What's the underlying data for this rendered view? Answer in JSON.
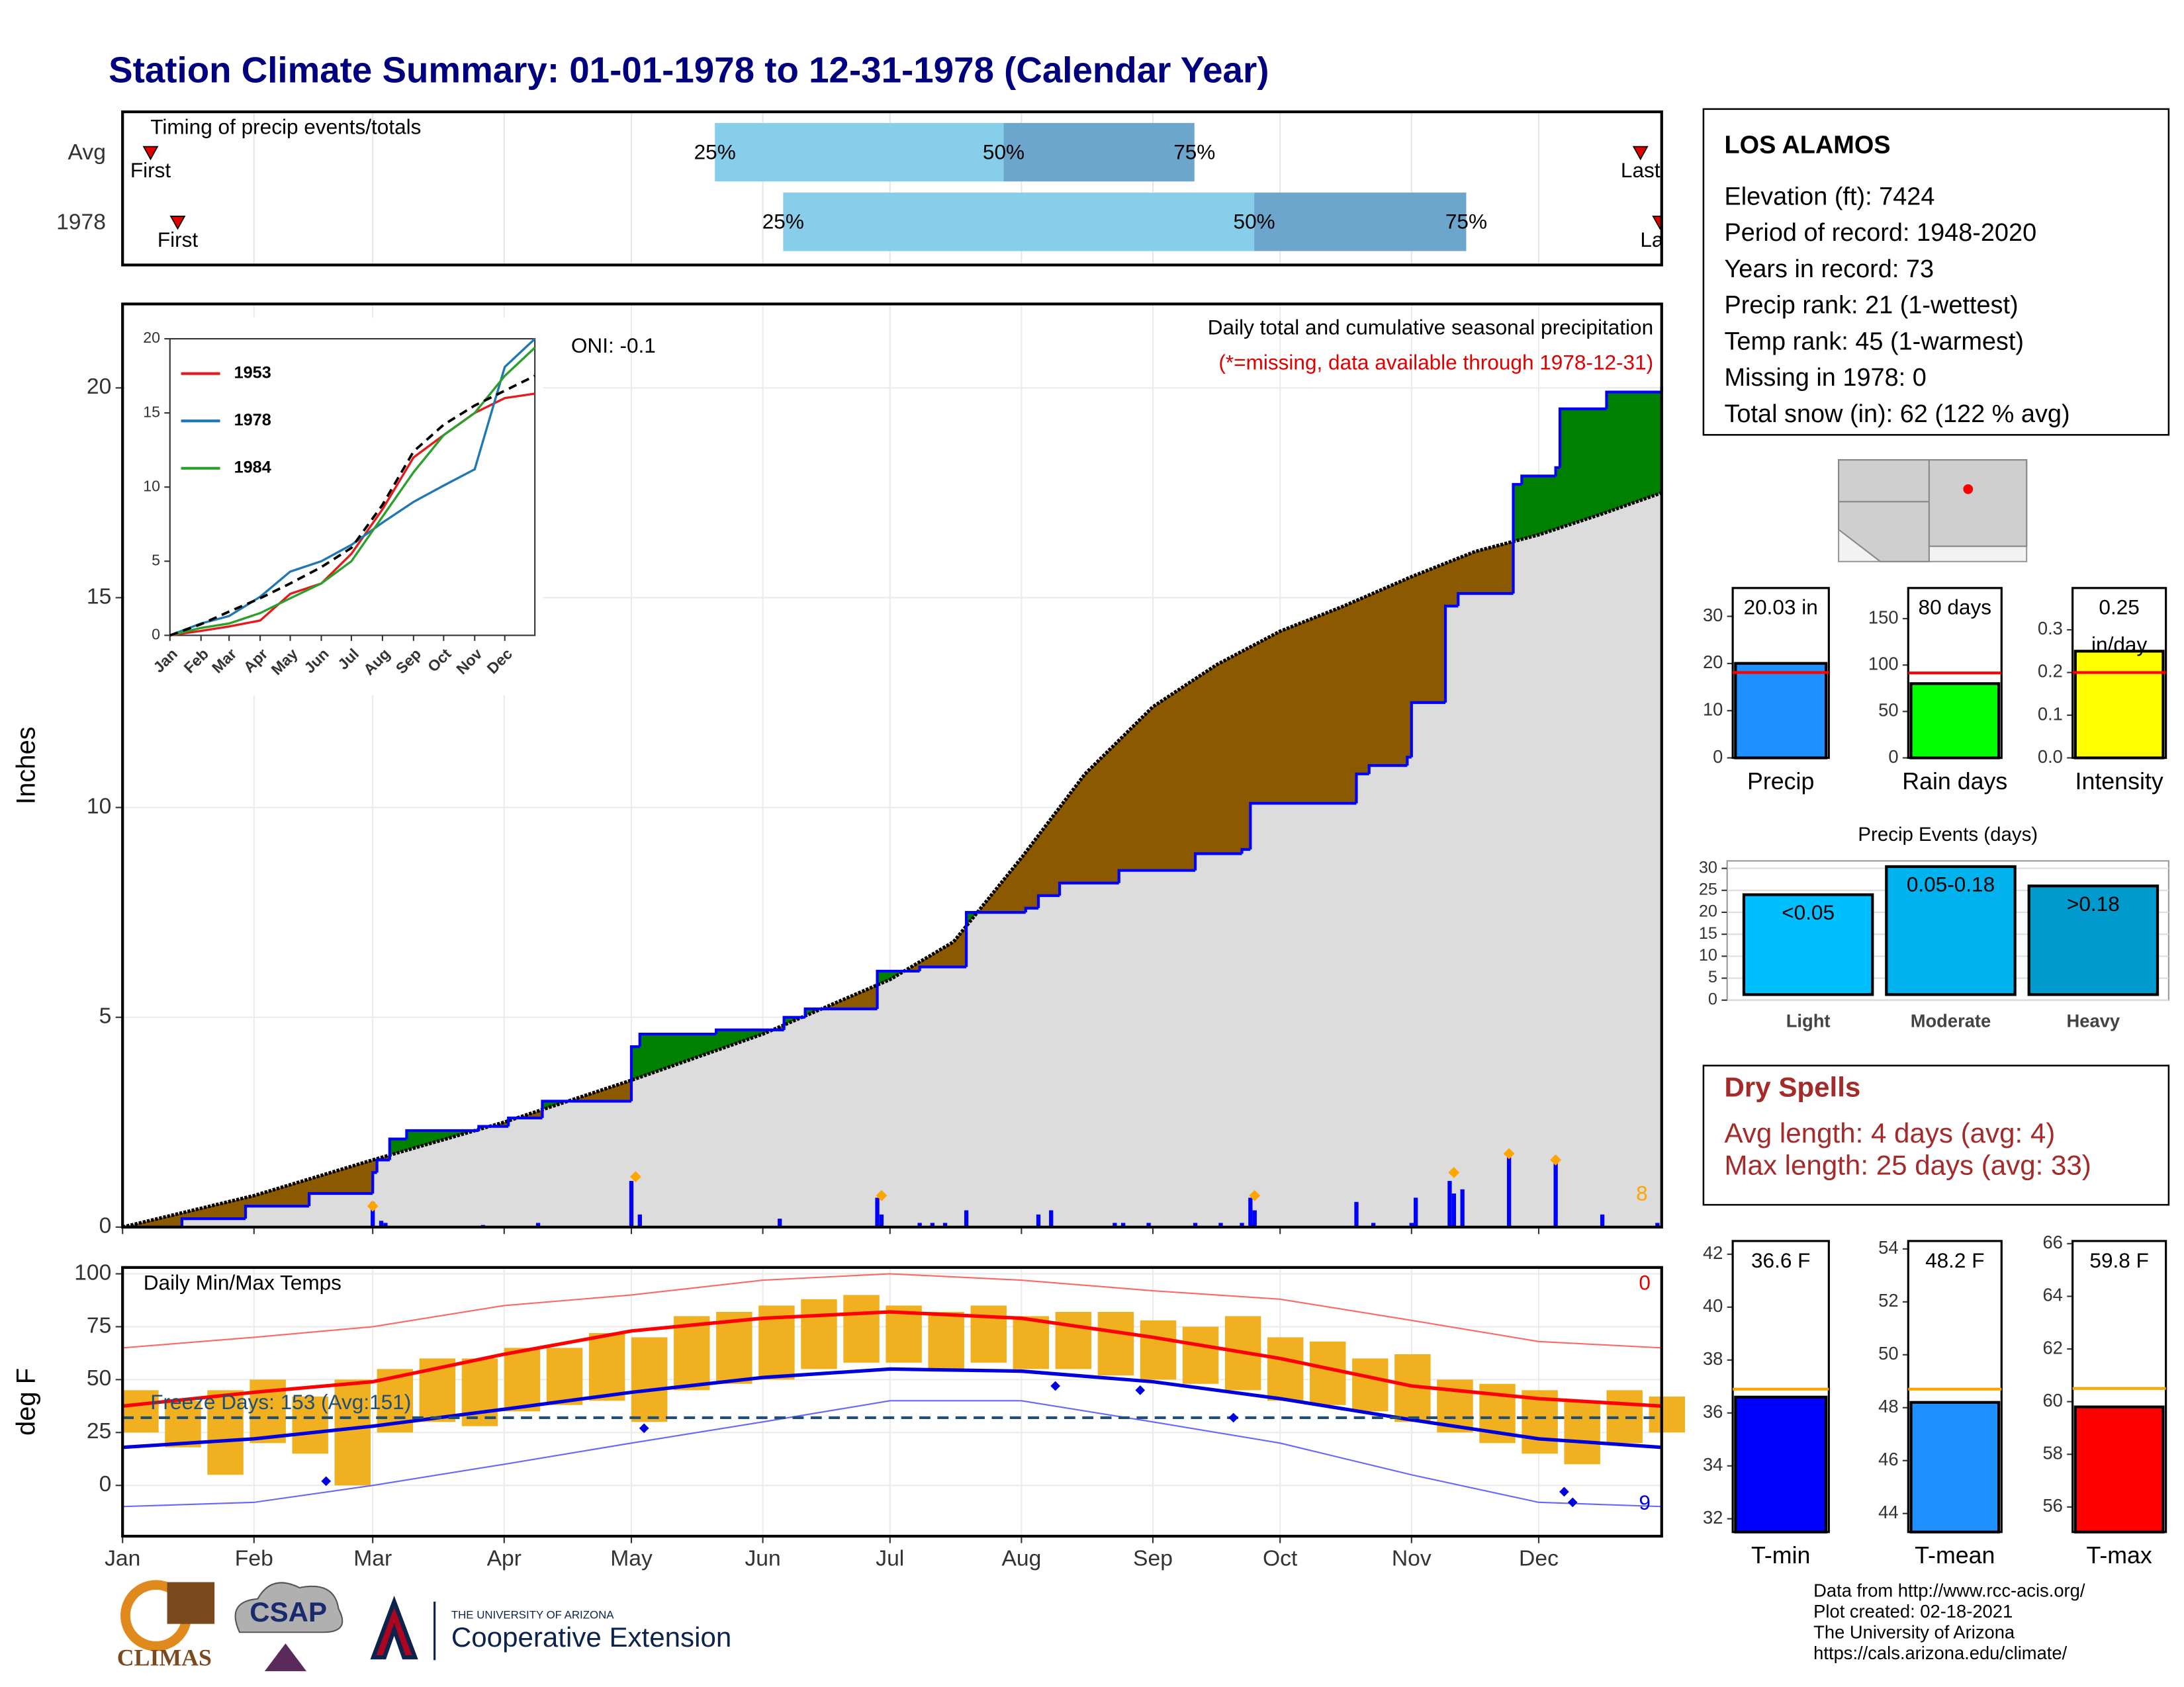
{
  "title": "Station Climate Summary: 01-01-1978 to 12-31-1978 (Calendar Year)",
  "station": {
    "name": "LOS ALAMOS",
    "lines": [
      "Elevation (ft): 7424",
      "Period of record: 1948-2020",
      "Years in record: 73",
      "Precip rank: 21 (1-wettest)",
      "Temp rank: 45 (1-warmest)",
      "Missing in 1978: 0",
      "Total snow (in): 62 (122 % avg)"
    ]
  },
  "dry_spells": {
    "title": "Dry Spells",
    "lines": [
      "Avg length: 4 days (avg: 4)",
      "Max length: 25 days (avg: 33)"
    ]
  },
  "credits": [
    "Data from http://www.rcc-acis.org/",
    "Plot created: 02-18-2021",
    "The University of Arizona",
    "https://cals.arizona.edu/climate/"
  ],
  "logos": {
    "climas": "CLIMAS",
    "csap": "CSAP",
    "university": "THE UNIVERSITY OF ARIZONA",
    "extension": "Cooperative Extension"
  },
  "chart_data": [
    {
      "type": "timing",
      "title": "Timing of precip events/totals",
      "categories": [
        "Avg",
        "1978"
      ],
      "first": [
        7.6,
        14
      ],
      "q25": [
        140.7,
        156.8
      ],
      "q50": [
        208.8,
        267.9
      ],
      "q75": [
        253.8,
        317.9
      ],
      "last": [
        359,
        363.6
      ],
      "q_labels": [
        "25%",
        "50%",
        "75%"
      ],
      "first_label": "First",
      "last_label": "Last",
      "colors": [
        "#87ceeb",
        "#6ca6cd"
      ],
      "marker_color": "#e00000",
      "xlim": [
        1,
        364
      ],
      "xticks": [
        1,
        32,
        60,
        91,
        121,
        152,
        182,
        213,
        244,
        274,
        305,
        335
      ],
      "grid": true
    },
    {
      "type": "cumulative",
      "title": "Daily total and cumulative seasonal precipitation",
      "note": "(*=missing, data available through 1978-12-31)",
      "annotation": "ONI: -0.1",
      "corner_label": "8",
      "y_label": "Inches",
      "xlim": [
        1,
        364
      ],
      "xticks": [
        1,
        32,
        60,
        91,
        121,
        152,
        182,
        213,
        244,
        274,
        305,
        335
      ],
      "ylim": [
        0,
        22
      ],
      "yticks": [
        0,
        5,
        10,
        15,
        20
      ],
      "grid": true,
      "above_color": "#008000",
      "below_color": "#8b5a00",
      "base_color": "#dcdcdc",
      "avg_cumulative": {
        "color": "#000000",
        "x": [
          1,
          32,
          60,
          91,
          121,
          152,
          182,
          197,
          213,
          228,
          244,
          259,
          274,
          289,
          305,
          320,
          335,
          350,
          364
        ],
        "values": [
          0,
          0.75,
          1.6,
          2.5,
          3.5,
          4.6,
          5.9,
          6.8,
          8.8,
          10.8,
          12.4,
          13.4,
          14.2,
          14.8,
          15.5,
          16.1,
          16.5,
          17.0,
          17.5
        ]
      },
      "cumulative": {
        "color": "#0000ff",
        "x": [
          1,
          15,
          30,
          45,
          60,
          61,
          64,
          68,
          85,
          92,
          100,
          121,
          123,
          141,
          157,
          162,
          179,
          189,
          200,
          214,
          217,
          222,
          236,
          254,
          265,
          267,
          292,
          295,
          304,
          305,
          313,
          316,
          329,
          331,
          339,
          340,
          351,
          364
        ],
        "values": [
          0,
          0.2,
          0.5,
          0.8,
          1.3,
          1.6,
          2.1,
          2.3,
          2.4,
          2.6,
          3.0,
          4.3,
          4.6,
          4.7,
          5.0,
          5.2,
          6.1,
          6.2,
          7.5,
          7.6,
          7.9,
          8.2,
          8.5,
          8.9,
          9.0,
          10.1,
          10.8,
          11.0,
          11.2,
          12.5,
          14.8,
          15.1,
          17.7,
          17.9,
          18.1,
          19.5,
          19.9,
          20.03
        ]
      },
      "daily": {
        "color": "#0000ff",
        "x": [
          60,
          62,
          63,
          86,
          99,
          121,
          123,
          156,
          179,
          180,
          189,
          192,
          195,
          200,
          217,
          220,
          235,
          237,
          243,
          254,
          260,
          265,
          267,
          268,
          292,
          296,
          305,
          306,
          314,
          315,
          317,
          328,
          339,
          350,
          363
        ],
        "values": [
          0.6,
          0.15,
          0.1,
          0.05,
          0.1,
          1.1,
          0.3,
          0.2,
          0.7,
          0.3,
          0.1,
          0.1,
          0.1,
          0.4,
          0.3,
          0.4,
          0.1,
          0.1,
          0.1,
          0.1,
          0.1,
          0.1,
          0.7,
          0.4,
          0.6,
          0.1,
          0.1,
          0.7,
          1.1,
          0.8,
          0.9,
          1.7,
          1.6,
          0.3,
          0.1
        ]
      },
      "markers": {
        "color": "#ffa500",
        "x": [
          60,
          122,
          180,
          268,
          315,
          328,
          339
        ],
        "values": [
          0.5,
          1.2,
          0.75,
          0.75,
          1.3,
          1.75,
          1.6
        ]
      }
    },
    {
      "type": "line",
      "xlim": [
        1,
        365
      ],
      "xticks": [
        {
          "value": 1,
          "label": "Jan"
        },
        {
          "value": 32,
          "label": "Feb"
        },
        {
          "value": 60,
          "label": "Mar"
        },
        {
          "value": 91,
          "label": "Apr"
        },
        {
          "value": 121,
          "label": "May"
        },
        {
          "value": 152,
          "label": "Jun"
        },
        {
          "value": 182,
          "label": "Jul"
        },
        {
          "value": 213,
          "label": "Aug"
        },
        {
          "value": 244,
          "label": "Sep"
        },
        {
          "value": 274,
          "label": "Oct"
        },
        {
          "value": 305,
          "label": "Nov"
        },
        {
          "value": 335,
          "label": "Dec"
        }
      ],
      "ylim": [
        0,
        20
      ],
      "yticks": [
        0,
        5,
        10,
        15,
        20
      ],
      "x": [
        1,
        32,
        60,
        91,
        121,
        152,
        182,
        213,
        244,
        274,
        305,
        335,
        365
      ],
      "series": [
        {
          "name": "1953",
          "color": "#e41a1c",
          "values": [
            0,
            0.3,
            0.6,
            1.0,
            2.8,
            3.5,
            5.5,
            8.5,
            12.0,
            13.5,
            15.0,
            16.0,
            16.3
          ]
        },
        {
          "name": "1978",
          "color": "#1f77b4",
          "values": [
            0,
            0.8,
            1.3,
            2.6,
            4.3,
            5.0,
            6.1,
            7.6,
            9.0,
            10.1,
            11.2,
            18.1,
            20.0
          ]
        },
        {
          "name": "1984",
          "color": "#2ca02c",
          "values": [
            0,
            0.5,
            0.8,
            1.5,
            2.5,
            3.5,
            5.0,
            8.0,
            11.0,
            13.5,
            15.0,
            17.5,
            19.4
          ]
        }
      ],
      "avg": {
        "color": "#000000",
        "values": [
          0,
          0.75,
          1.6,
          2.5,
          3.5,
          4.6,
          5.9,
          8.8,
          12.4,
          14.2,
          15.5,
          16.5,
          17.5
        ]
      }
    },
    {
      "type": "temperature",
      "title": "Daily Min/Max Temps",
      "annotation": "Freeze Days: 153 (Avg:151)",
      "top_label": "0",
      "bottom_label": "9",
      "y_label": "deg F",
      "xlim": [
        1,
        364
      ],
      "xticks": [
        {
          "value": 1,
          "label": "Jan"
        },
        {
          "value": 32,
          "label": "Feb"
        },
        {
          "value": 60,
          "label": "Mar"
        },
        {
          "value": 91,
          "label": "Apr"
        },
        {
          "value": 121,
          "label": "May"
        },
        {
          "value": 152,
          "label": "Jun"
        },
        {
          "value": 182,
          "label": "Jul"
        },
        {
          "value": 213,
          "label": "Aug"
        },
        {
          "value": 244,
          "label": "Sep"
        },
        {
          "value": 274,
          "label": "Oct"
        },
        {
          "value": 305,
          "label": "Nov"
        },
        {
          "value": 335,
          "label": "Dec"
        }
      ],
      "ylim": [
        -24,
        103
      ],
      "yticks": [
        0,
        25,
        50,
        75,
        100
      ],
      "grid": true,
      "freeze": 32,
      "daily": {
        "color": "#f0b020",
        "x": [
          1,
          11,
          21,
          31,
          41,
          51,
          61,
          71,
          81,
          91,
          101,
          111,
          121,
          131,
          141,
          151,
          161,
          171,
          181,
          191,
          201,
          211,
          221,
          231,
          241,
          251,
          261,
          271,
          281,
          291,
          301,
          311,
          321,
          331,
          341,
          351,
          361
        ],
        "max": [
          45,
          40,
          45,
          50,
          42,
          50,
          55,
          60,
          60,
          65,
          65,
          72,
          70,
          80,
          82,
          85,
          88,
          90,
          85,
          82,
          85,
          80,
          82,
          82,
          78,
          75,
          80,
          70,
          68,
          60,
          62,
          50,
          48,
          45,
          40,
          45,
          42
        ],
        "min": [
          25,
          18,
          5,
          20,
          15,
          0,
          25,
          30,
          28,
          35,
          38,
          40,
          30,
          45,
          48,
          50,
          55,
          58,
          58,
          55,
          58,
          55,
          55,
          52,
          50,
          48,
          45,
          40,
          38,
          35,
          30,
          25,
          20,
          15,
          10,
          20,
          25
        ]
      },
      "monthly_x": [
        1,
        32,
        60,
        91,
        121,
        152,
        182,
        213,
        244,
        274,
        305,
        335,
        364
      ],
      "avg_max": {
        "color": "#ff0000",
        "values": [
          37.5,
          44,
          49,
          62,
          73,
          79,
          82,
          79,
          70,
          60,
          47,
          41,
          37.5
        ]
      },
      "avg_min": {
        "color": "#0000dd",
        "values": [
          18,
          22,
          28,
          36,
          44,
          51,
          55,
          54,
          49,
          41,
          31,
          22,
          18
        ]
      },
      "record_high": {
        "color": "#ff6666",
        "values": [
          65,
          70,
          75,
          85,
          90,
          97,
          100,
          97,
          92,
          88,
          78,
          68,
          65
        ]
      },
      "record_low": {
        "color": "#6666ff",
        "values": [
          -10,
          -8,
          0,
          10,
          20,
          30,
          40,
          40,
          30,
          20,
          5,
          -8,
          -10
        ]
      },
      "markers": {
        "color": "#0000dd",
        "x": [
          49,
          124,
          221,
          241,
          263,
          341,
          343
        ],
        "values": [
          2,
          27,
          47,
          45,
          32,
          -3,
          -8
        ]
      }
    },
    {
      "type": "summary_bar",
      "category": "Precip",
      "value": 20.03,
      "value_label": "20.03 in",
      "avg": 18.1,
      "color": "#1e90ff",
      "avg_color": "#ff0000",
      "ylim": [
        0,
        36
      ],
      "yticks": [
        0,
        10,
        20,
        30
      ]
    },
    {
      "type": "summary_bar",
      "category": "Rain days",
      "value": 80,
      "value_label": "80 days",
      "avg": 91.5,
      "color": "#00ff00",
      "avg_color": "#ff0000",
      "ylim": [
        0,
        183
      ],
      "yticks": [
        0,
        50,
        100,
        150
      ]
    },
    {
      "type": "summary_bar",
      "category": "Intensity",
      "value": 0.25,
      "value_label": "0.25 in/day",
      "avg": 0.2,
      "color": "#ffff00",
      "avg_color": "#ff0000",
      "ylim": [
        0,
        0.398
      ],
      "yticks": [
        {
          "value": 0,
          "label": "0.0"
        },
        0.1,
        0.2,
        0.3
      ]
    },
    {
      "type": "bar",
      "title": "Precip Events (days)",
      "categories": [
        "Light",
        "Moderate",
        "Heavy"
      ],
      "values": [
        24,
        30.4,
        26
      ],
      "bin_labels": [
        "<0.05",
        "0.05-0.18",
        ">0.18"
      ],
      "colors": [
        "#00bfff",
        "#00b2ee",
        "#009acd"
      ],
      "ylim": [
        0,
        31.7
      ],
      "yticks": [
        0,
        5,
        10,
        15,
        20,
        25,
        30
      ],
      "grid": true
    },
    {
      "type": "summary_bar",
      "category": "T-min",
      "value": 36.6,
      "value_label": "36.6 F",
      "avg": 36.9,
      "color": "#0000ff",
      "avg_color": "#ffa500",
      "ylim": [
        31.5,
        42.5
      ],
      "yticks": [
        32,
        34,
        36,
        38,
        40,
        42
      ]
    },
    {
      "type": "summary_bar",
      "category": "T-mean",
      "value": 48.2,
      "value_label": "48.2 F",
      "avg": 48.7,
      "color": "#1e90ff",
      "avg_color": "#ffa500",
      "ylim": [
        43.3,
        54.3
      ],
      "yticks": [
        44,
        46,
        48,
        50,
        52,
        54
      ]
    },
    {
      "type": "summary_bar",
      "category": "T-max",
      "value": 59.8,
      "value_label": "59.8 F",
      "avg": 60.5,
      "color": "#ff0000",
      "avg_color": "#ffa500",
      "ylim": [
        55.05,
        66.1
      ],
      "yticks": [
        56,
        58,
        60,
        62,
        64,
        66
      ]
    }
  ]
}
